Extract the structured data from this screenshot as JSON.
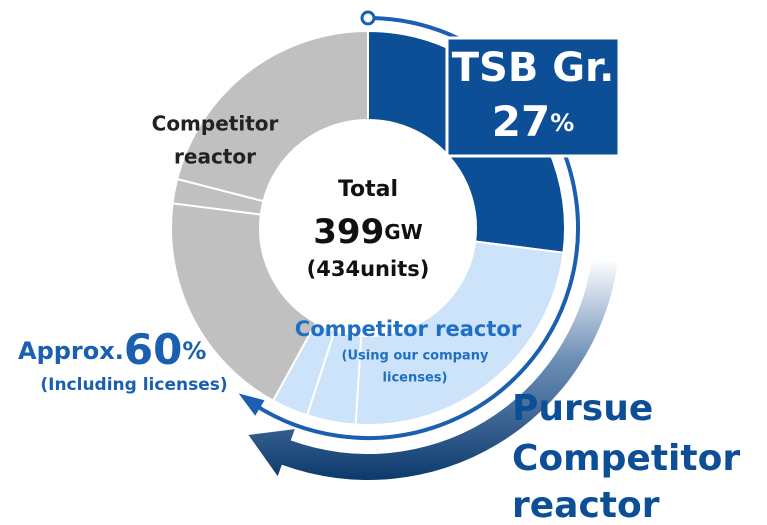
{
  "chart_data": {
    "type": "donut",
    "values": [
      27,
      24,
      4,
      3,
      19,
      2,
      21
    ],
    "colors": [
      "#0d4f96",
      "#cce3fa",
      "#cce3fa",
      "#cce3fa",
      "#c0c0c0",
      "#c0c0c0",
      "#c0c0c0"
    ],
    "segment_label": "TSB Gr.",
    "unit": "%",
    "gray_label": [
      "Competitor",
      "reactor"
    ],
    "license_label": "Competitor reactor",
    "license_note": [
      "(Using our company",
      "licenses)"
    ],
    "total_label": "Total",
    "total_value": 399,
    "total_unit": "GW",
    "total_units": "(434units)",
    "approx_label": "Approx.",
    "approx_value": 60,
    "approx_unit": "%",
    "approx_note": "(Including licenses)",
    "pursue": [
      "Pursue",
      "Competitor",
      "reactor"
    ]
  }
}
